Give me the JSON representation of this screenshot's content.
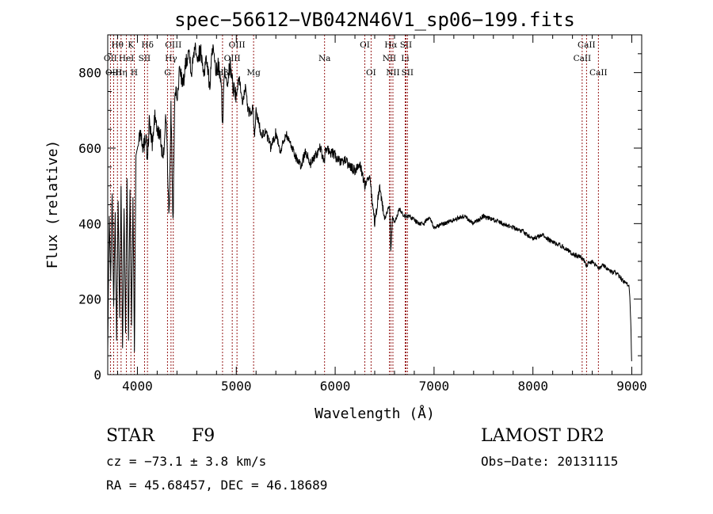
{
  "chart_data": {
    "type": "line",
    "title": "spec−56612−VB042N46V1_sp06−199.fits",
    "xlabel": "Wavelength (Å)",
    "ylabel": "Flux (relative)",
    "xlim": [
      3700,
      9100
    ],
    "ylim": [
      0,
      900
    ],
    "xticks": [
      4000,
      5000,
      6000,
      7000,
      8000,
      9000
    ],
    "yticks": [
      0,
      200,
      400,
      600,
      800
    ],
    "grid": false,
    "line_color": "#000000",
    "marker_color": "#8b0000",
    "series": [
      {
        "x": [
          3700,
          3715,
          3730,
          3745,
          3760,
          3775,
          3790,
          3805,
          3820,
          3835,
          3850,
          3865,
          3880,
          3895,
          3910,
          3925,
          3940,
          3955,
          3970,
          3985,
          4000,
          4030,
          4060,
          4090,
          4100,
          4120,
          4150,
          4180,
          4200,
          4230,
          4260,
          4290,
          4320,
          4340,
          4360,
          4380,
          4400,
          4430,
          4460,
          4490,
          4520,
          4550,
          4580,
          4610,
          4640,
          4670,
          4700,
          4730,
          4760,
          4790,
          4820,
          4850,
          4861,
          4880,
          4910,
          4940,
          4970,
          5000,
          5030,
          5060,
          5090,
          5120,
          5150,
          5170,
          5183,
          5200,
          5250,
          5300,
          5350,
          5400,
          5450,
          5500,
          5550,
          5600,
          5650,
          5700,
          5750,
          5800,
          5850,
          5890,
          5900,
          5950,
          6000,
          6050,
          6100,
          6150,
          6200,
          6250,
          6300,
          6350,
          6400,
          6450,
          6500,
          6550,
          6563,
          6580,
          6600,
          6650,
          6700,
          6750,
          6800,
          6850,
          6900,
          6950,
          7000,
          7100,
          7200,
          7300,
          7400,
          7500,
          7600,
          7700,
          7800,
          7900,
          8000,
          8100,
          8200,
          8300,
          8400,
          8500,
          8542,
          8600,
          8662,
          8700,
          8750,
          8800,
          8850,
          8900,
          8950,
          8975,
          8990,
          9000
        ],
        "values": [
          60,
          420,
          250,
          480,
          180,
          430,
          90,
          460,
          150,
          500,
          70,
          440,
          110,
          520,
          90,
          490,
          130,
          470,
          60,
          580,
          600,
          650,
          600,
          640,
          560,
          670,
          610,
          690,
          640,
          640,
          560,
          700,
          400,
          720,
          390,
          770,
          720,
          820,
          760,
          830,
          860,
          800,
          880,
          840,
          860,
          800,
          840,
          760,
          870,
          800,
          820,
          760,
          650,
          810,
          780,
          820,
          760,
          740,
          790,
          720,
          760,
          700,
          690,
          710,
          620,
          700,
          640,
          640,
          600,
          640,
          590,
          640,
          610,
          580,
          550,
          590,
          560,
          580,
          600,
          560,
          600,
          590,
          580,
          560,
          570,
          550,
          540,
          560,
          500,
          520,
          400,
          500,
          410,
          450,
          320,
          420,
          400,
          440,
          420,
          420,
          410,
          400,
          400,
          420,
          390,
          400,
          410,
          420,
          400,
          420,
          410,
          400,
          390,
          380,
          360,
          370,
          350,
          340,
          320,
          310,
          290,
          300,
          280,
          290,
          280,
          270,
          270,
          250,
          240,
          230,
          140,
          10
        ]
      }
    ],
    "lines": [
      {
        "name": "Hθ",
        "x": 3798,
        "row": 0
      },
      {
        "name": "K",
        "x": 3934,
        "row": 0
      },
      {
        "name": "Hδ",
        "x": 4102,
        "row": 0
      },
      {
        "name": "OIII",
        "x": 4363,
        "row": 0
      },
      {
        "name": "OIII",
        "x": 5007,
        "row": 0
      },
      {
        "name": "OI",
        "x": 6300,
        "row": 0
      },
      {
        "name": "Hα",
        "x": 6563,
        "row": 0
      },
      {
        "name": "SII",
        "x": 6716,
        "row": 0
      },
      {
        "name": "CaII",
        "x": 8542,
        "row": 0
      },
      {
        "name": "OII",
        "x": 3727,
        "row": 1
      },
      {
        "name": "HeI",
        "x": 3889,
        "row": 1
      },
      {
        "name": "SII",
        "x": 4072,
        "row": 1
      },
      {
        "name": "Hγ",
        "x": 4340,
        "row": 1
      },
      {
        "name": "OIII",
        "x": 4959,
        "row": 1
      },
      {
        "name": "Na",
        "x": 5893,
        "row": 1
      },
      {
        "name": "NII",
        "x": 6548,
        "row": 1
      },
      {
        "name": "Li",
        "x": 6708,
        "row": 1
      },
      {
        "name": "CaII",
        "x": 8498,
        "row": 1
      },
      {
        "name": "OIII",
        "x": 3760,
        "row": 2
      },
      {
        "name": "Hη",
        "x": 3835,
        "row": 2
      },
      {
        "name": "H",
        "x": 3968,
        "row": 2
      },
      {
        "name": "G",
        "x": 4304,
        "row": 2
      },
      {
        "name": "Hβ",
        "x": 4861,
        "row": 2
      },
      {
        "name": "Mg",
        "x": 5175,
        "row": 2
      },
      {
        "name": "OI",
        "x": 6363,
        "row": 2
      },
      {
        "name": "NII",
        "x": 6584,
        "row": 2
      },
      {
        "name": "SII",
        "x": 6731,
        "row": 2
      },
      {
        "name": "CaII",
        "x": 8662,
        "row": 2
      }
    ]
  },
  "info": {
    "object_class": "STAR",
    "subclass": "F9",
    "survey": "LAMOST DR2",
    "cz": "cz = −73.1 ± 3.8 km/s",
    "obs_date": "Obs−Date: 20131115",
    "radec": "RA =  45.68457, DEC =  46.18689"
  }
}
